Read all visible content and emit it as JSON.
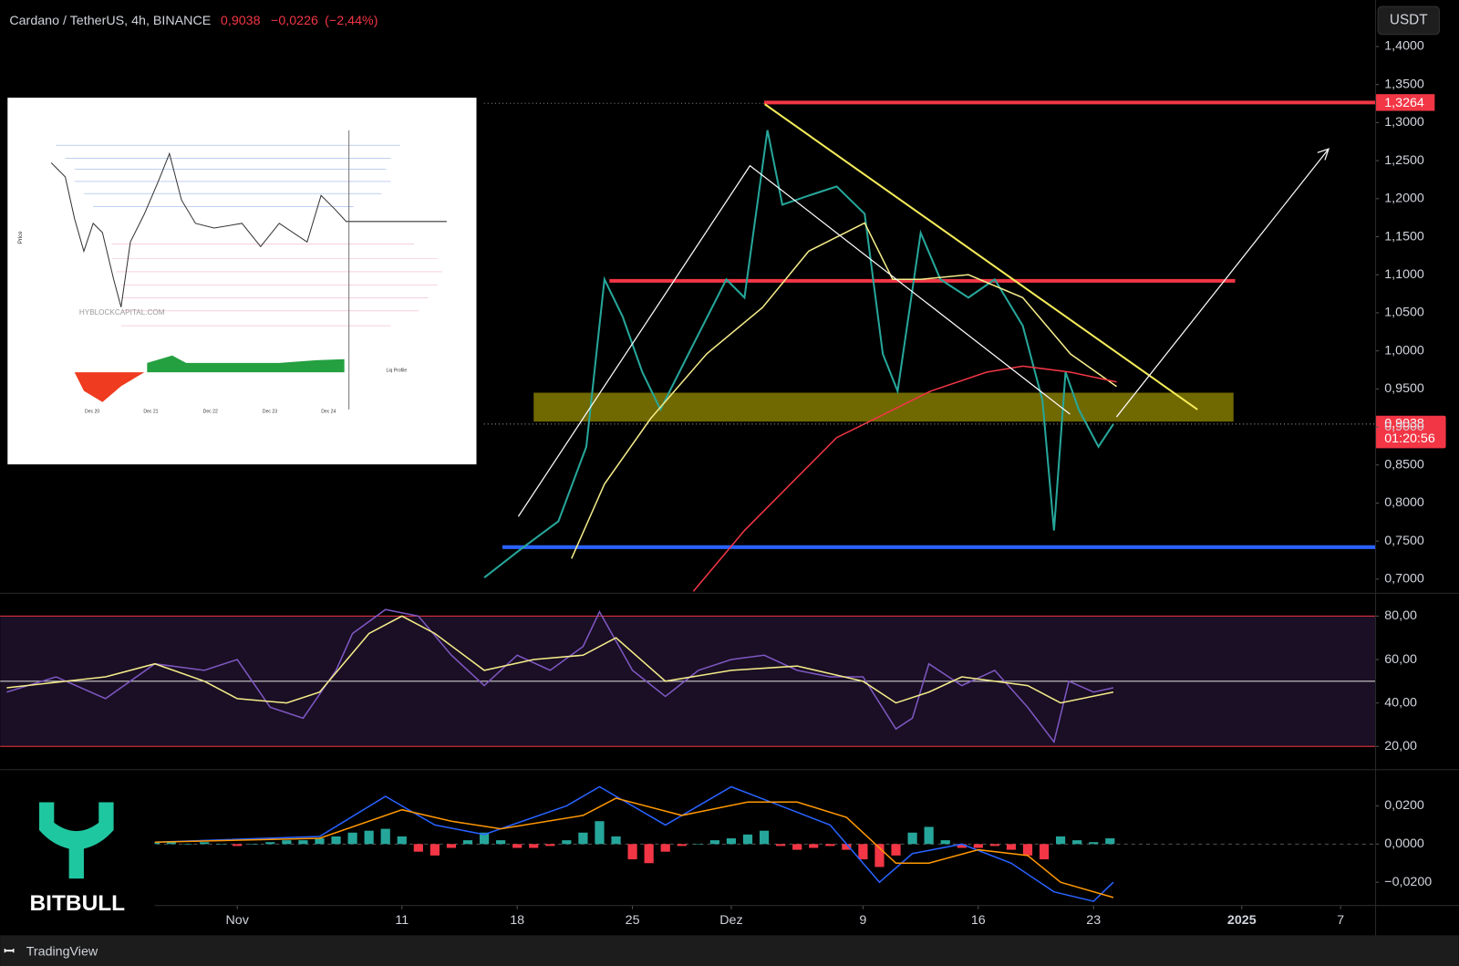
{
  "header": {
    "title": "Cardano / TetherUS, 4h, BINANCE",
    "price": "0,9038",
    "change": "−0,0226",
    "change_pct": "(−2,44%)",
    "currency": "USDT"
  },
  "inset": {
    "watermark": "HYBLOCKCAPITAL.COM",
    "axis_label": "Price",
    "profile_label": "Liq Profile",
    "dates": [
      "Dec 20",
      "Dec 21",
      "Dec 22",
      "Dec 23",
      "Dec 24"
    ]
  },
  "brand": {
    "logo": "BITBULL",
    "footer": "TradingView"
  },
  "chart_data": [
    {
      "type": "line",
      "xlim": [
        -14.4,
        69.1
      ],
      "xticks": [
        {
          "value": 0,
          "label": "Nov"
        },
        {
          "value": 10,
          "label": "11"
        },
        {
          "value": 17,
          "label": "18"
        },
        {
          "value": 24,
          "label": "25"
        },
        {
          "value": 30,
          "label": "Dez"
        },
        {
          "value": 38,
          "label": "9"
        },
        {
          "value": 45,
          "label": "16"
        },
        {
          "value": 52,
          "label": "23"
        },
        {
          "value": 61,
          "label": "2025"
        },
        {
          "value": 67,
          "label": "7"
        }
      ],
      "ylim": [
        0.682,
        1.455
      ],
      "yticks": [
        {
          "value": 1.4,
          "label": "1,4000"
        },
        {
          "value": 1.35,
          "label": "1,3500"
        },
        {
          "value": 1.3,
          "label": "1,3000"
        },
        {
          "value": 1.25,
          "label": "1,2500"
        },
        {
          "value": 1.2,
          "label": "1,2000"
        },
        {
          "value": 1.15,
          "label": "1,1500"
        },
        {
          "value": 1.1,
          "label": "1,1000"
        },
        {
          "value": 1.05,
          "label": "1,0500"
        },
        {
          "value": 1.0,
          "label": "1,0000"
        },
        {
          "value": 0.95,
          "label": "0,9500"
        },
        {
          "value": 0.9,
          "label": "0,9000"
        },
        {
          "value": 0.85,
          "label": "0,8500"
        },
        {
          "value": 0.8,
          "label": "0,8000"
        },
        {
          "value": 0.75,
          "label": "0,7500"
        },
        {
          "value": 0.7,
          "label": "0,7000"
        }
      ],
      "series": [
        {
          "color": "#26a69a",
          "x": [
            15,
            17.2,
            19.5,
            21.2,
            22.3,
            23.4,
            24.6,
            25.7,
            27.4,
            29.7,
            30.8,
            32.2,
            33.1,
            34.7,
            36.4,
            38.1,
            39.2,
            40.1,
            41.5,
            42.7,
            44.4,
            46.0,
            47.7,
            48.9,
            49.6,
            50.3,
            51.1,
            52.3,
            53.2
          ],
          "values": [
            0.702,
            0.739,
            0.776,
            0.874,
            1.094,
            1.045,
            0.972,
            0.923,
            0.996,
            1.094,
            1.07,
            1.29,
            1.192,
            1.204,
            1.216,
            1.18,
            0.996,
            0.947,
            1.155,
            1.094,
            1.07,
            1.094,
            1.033,
            0.935,
            0.764,
            0.972,
            0.923,
            0.874,
            0.9038
          ]
        },
        {
          "color": "#f5ec8a",
          "x": [
            20.3,
            22.3,
            25.1,
            28.5,
            31.9,
            34.7,
            38.1,
            39.8,
            41.5,
            44.4,
            47.7,
            50.6,
            53.4
          ],
          "values": [
            0.727,
            0.825,
            0.911,
            0.996,
            1.057,
            1.131,
            1.168,
            1.094,
            1.094,
            1.1,
            1.07,
            0.996,
            0.953
          ]
        },
        {
          "color": "#f23645",
          "x": [
            27.7,
            30.8,
            36.4,
            39.3,
            42.1,
            45.5,
            47.7,
            50.6,
            53.4
          ],
          "values": [
            0.684,
            0.764,
            0.886,
            0.917,
            0.947,
            0.972,
            0.98,
            0.972,
            0.959
          ]
        }
      ],
      "levels": [
        {
          "value": 1.3264,
          "label": "1,3264",
          "x": [
            32.0,
            69.1
          ],
          "color": "#f23645"
        },
        {
          "value": 1.092,
          "x": [
            22.6,
            60.6
          ],
          "color": "#f23645"
        },
        {
          "value": 0.742,
          "x": [
            16.1,
            69.1
          ],
          "color": "#2962ff"
        }
      ],
      "zone": {
        "range": [
          0.907,
          0.945
        ],
        "x": [
          18.0,
          60.5
        ],
        "color": "#8c8200"
      },
      "last": {
        "value": 0.9038,
        "label": "0,9038",
        "countdown": "01:20:56",
        "color": "#f23645"
      }
    },
    {
      "type": "line",
      "xlim": [
        -14.4,
        69.1
      ],
      "ylim": [
        9.7,
        90.3
      ],
      "yticks": [
        {
          "value": 80,
          "label": "80,00"
        },
        {
          "value": 60,
          "label": "60,00"
        },
        {
          "value": 40,
          "label": "40,00"
        },
        {
          "value": 20,
          "label": "20,00"
        }
      ],
      "hlines": [
        {
          "value": 80,
          "color": "#f23645"
        },
        {
          "value": 50,
          "color": "#cfcfcf"
        },
        {
          "value": 20,
          "color": "#f23645"
        }
      ],
      "fill": "#1a0f24",
      "series": [
        {
          "color": "#7e57c2",
          "x": [
            -14,
            -11,
            -8,
            -5,
            -2,
            0,
            2,
            4,
            6,
            7,
            9,
            11,
            13,
            15,
            17,
            19,
            21,
            22,
            24,
            26,
            28,
            30,
            32,
            34,
            36,
            38,
            40,
            41,
            42,
            44,
            46,
            48,
            49.6,
            50.5,
            52,
            53.2
          ],
          "values": [
            45,
            52,
            42,
            58,
            55,
            60,
            38,
            33,
            55,
            72,
            83,
            80,
            62,
            48,
            62,
            55,
            66,
            82,
            55,
            43,
            55,
            60,
            62,
            55,
            52,
            52,
            28,
            33,
            58,
            48,
            55,
            38,
            22,
            50,
            45,
            47
          ]
        },
        {
          "color": "#f5ec8a",
          "x": [
            -14,
            -8,
            -5,
            -2,
            0,
            3,
            5,
            8,
            10,
            12,
            15,
            18,
            21,
            23,
            26,
            30,
            34,
            38,
            40,
            42,
            44,
            48,
            50,
            53.2
          ],
          "values": [
            47,
            52,
            58,
            50,
            42,
            40,
            45,
            72,
            80,
            72,
            55,
            60,
            62,
            70,
            50,
            55,
            57,
            50,
            40,
            45,
            52,
            48,
            40,
            45
          ]
        }
      ]
    },
    {
      "type": "bar",
      "xlim": [
        -14.4,
        69.1
      ],
      "ylim": [
        -0.0317,
        0.0385
      ],
      "yticks": [
        {
          "value": 0.02,
          "label": "0,0200"
        },
        {
          "value": 0,
          "label": "0,0000"
        },
        {
          "value": -0.02,
          "label": "−0,0200"
        }
      ],
      "hlines": [
        {
          "value": 0,
          "color": "#555555"
        }
      ],
      "up_color": "#26a69a",
      "down_color": "#f23645",
      "bars": {
        "x": [
          -5,
          -4,
          -3,
          -2,
          -1,
          0,
          1,
          2,
          3,
          4,
          5,
          6,
          7,
          8,
          9,
          10,
          11,
          12,
          13,
          14,
          15,
          16,
          17,
          18,
          19,
          20,
          21,
          22,
          23,
          24,
          25,
          26,
          27,
          28,
          29,
          30,
          31,
          32,
          33,
          34,
          35,
          36,
          37,
          38,
          39,
          40,
          41,
          42,
          43,
          44,
          45,
          46,
          47,
          48,
          49,
          50,
          51,
          52,
          53
        ],
        "values": [
          0.001,
          0.001,
          0.0,
          0.001,
          0.0,
          -0.001,
          0.0,
          0.001,
          0.002,
          0.002,
          0.003,
          0.004,
          0.006,
          0.007,
          0.008,
          0.004,
          -0.004,
          -0.006,
          -0.002,
          0.002,
          0.006,
          0.002,
          -0.002,
          -0.002,
          -0.001,
          0.002,
          0.006,
          0.012,
          0.004,
          -0.008,
          -0.01,
          -0.004,
          -0.001,
          0.0,
          0.002,
          0.003,
          0.005,
          0.007,
          -0.001,
          -0.003,
          -0.002,
          -0.001,
          -0.003,
          -0.008,
          -0.012,
          -0.006,
          0.006,
          0.009,
          0.002,
          -0.002,
          -0.002,
          -0.001,
          -0.003,
          -0.006,
          -0.008,
          0.004,
          0.002,
          0.001,
          0.003
        ]
      },
      "series": [
        {
          "color": "#2962ff",
          "x": [
            -5,
            5,
            9,
            12,
            15,
            20,
            22,
            26,
            30,
            33,
            36,
            39,
            41,
            44,
            47,
            49.6,
            52,
            53.2
          ],
          "values": [
            0.001,
            0.004,
            0.025,
            0.01,
            0.005,
            0.02,
            0.03,
            0.01,
            0.03,
            0.02,
            0.01,
            -0.02,
            -0.005,
            0,
            -0.01,
            -0.025,
            -0.03,
            -0.02
          ]
        },
        {
          "color": "#ff9800",
          "x": [
            -5,
            5,
            10,
            13,
            16,
            21,
            23,
            27,
            31,
            34,
            37,
            40,
            42,
            45,
            48,
            50,
            53.2
          ],
          "values": [
            0.001,
            0.003,
            0.018,
            0.012,
            0.008,
            0.015,
            0.024,
            0.015,
            0.022,
            0.022,
            0.014,
            -0.01,
            -0.01,
            -0.003,
            -0.006,
            -0.02,
            -0.028
          ]
        }
      ]
    }
  ]
}
